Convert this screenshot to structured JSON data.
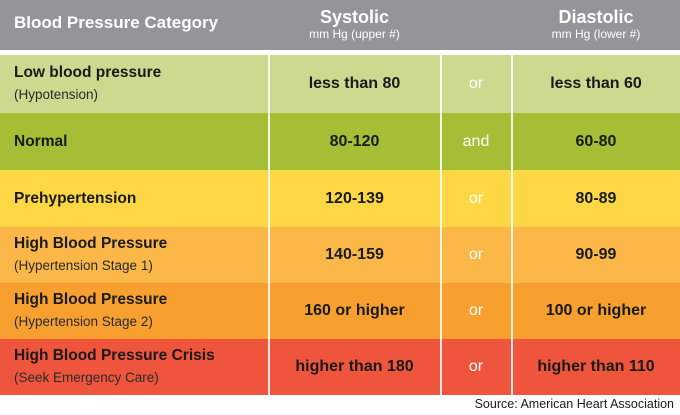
{
  "header": {
    "category": "Blood Pressure Category",
    "systolic": {
      "title": "Systolic",
      "subtitle": "mm Hg (upper #)"
    },
    "diastolic": {
      "title": "Diastolic",
      "subtitle": "mm Hg (lower #)"
    },
    "bg_color": "#939598"
  },
  "rows": [
    {
      "name": "Low blood pressure",
      "sub": "(Hypotension)",
      "systolic": "less than 80",
      "conj": "or",
      "diastolic": "less than 60",
      "color": "#cdd98e"
    },
    {
      "name": "Normal",
      "sub": "",
      "systolic": "80-120",
      "conj": "and",
      "diastolic": "60-80",
      "color": "#a6bd36"
    },
    {
      "name": "Prehypertension",
      "sub": "",
      "systolic": "120-139",
      "conj": "or",
      "diastolic": "80-89",
      "color": "#fdd844"
    },
    {
      "name": "High Blood Pressure",
      "sub": "(Hypertension Stage 1)",
      "systolic": "140-159",
      "conj": "or",
      "diastolic": "90-99",
      "color": "#fbb848"
    },
    {
      "name": "High Blood Pressure",
      "sub": "(Hypertension Stage 2)",
      "systolic": "160 or higher",
      "conj": "or",
      "diastolic": "100 or higher",
      "color": "#f7a030"
    },
    {
      "name": "High Blood Pressure Crisis",
      "sub": "(Seek Emergency Care)",
      "systolic": "higher than 180",
      "conj": "or",
      "diastolic": "higher than 110",
      "color": "#ef553d"
    }
  ],
  "source": "Source: American Heart Association",
  "chart_data": {
    "type": "table",
    "title": "Blood Pressure Category",
    "columns": [
      "Blood Pressure Category",
      "Systolic mm Hg (upper #)",
      "",
      "Diastolic mm Hg (lower #)"
    ],
    "rows": [
      [
        "Low blood pressure (Hypotension)",
        "less than 80",
        "or",
        "less than 60"
      ],
      [
        "Normal",
        "80-120",
        "and",
        "60-80"
      ],
      [
        "Prehypertension",
        "120-139",
        "or",
        "80-89"
      ],
      [
        "High Blood Pressure (Hypertension Stage 1)",
        "140-159",
        "or",
        "90-99"
      ],
      [
        "High Blood Pressure (Hypertension Stage 2)",
        "160 or higher",
        "or",
        "100 or higher"
      ],
      [
        "High Blood Pressure Crisis (Seek Emergency Care)",
        "higher than 180",
        "or",
        "higher than 110"
      ]
    ],
    "annotations": [
      "Source: American Heart Association"
    ]
  }
}
